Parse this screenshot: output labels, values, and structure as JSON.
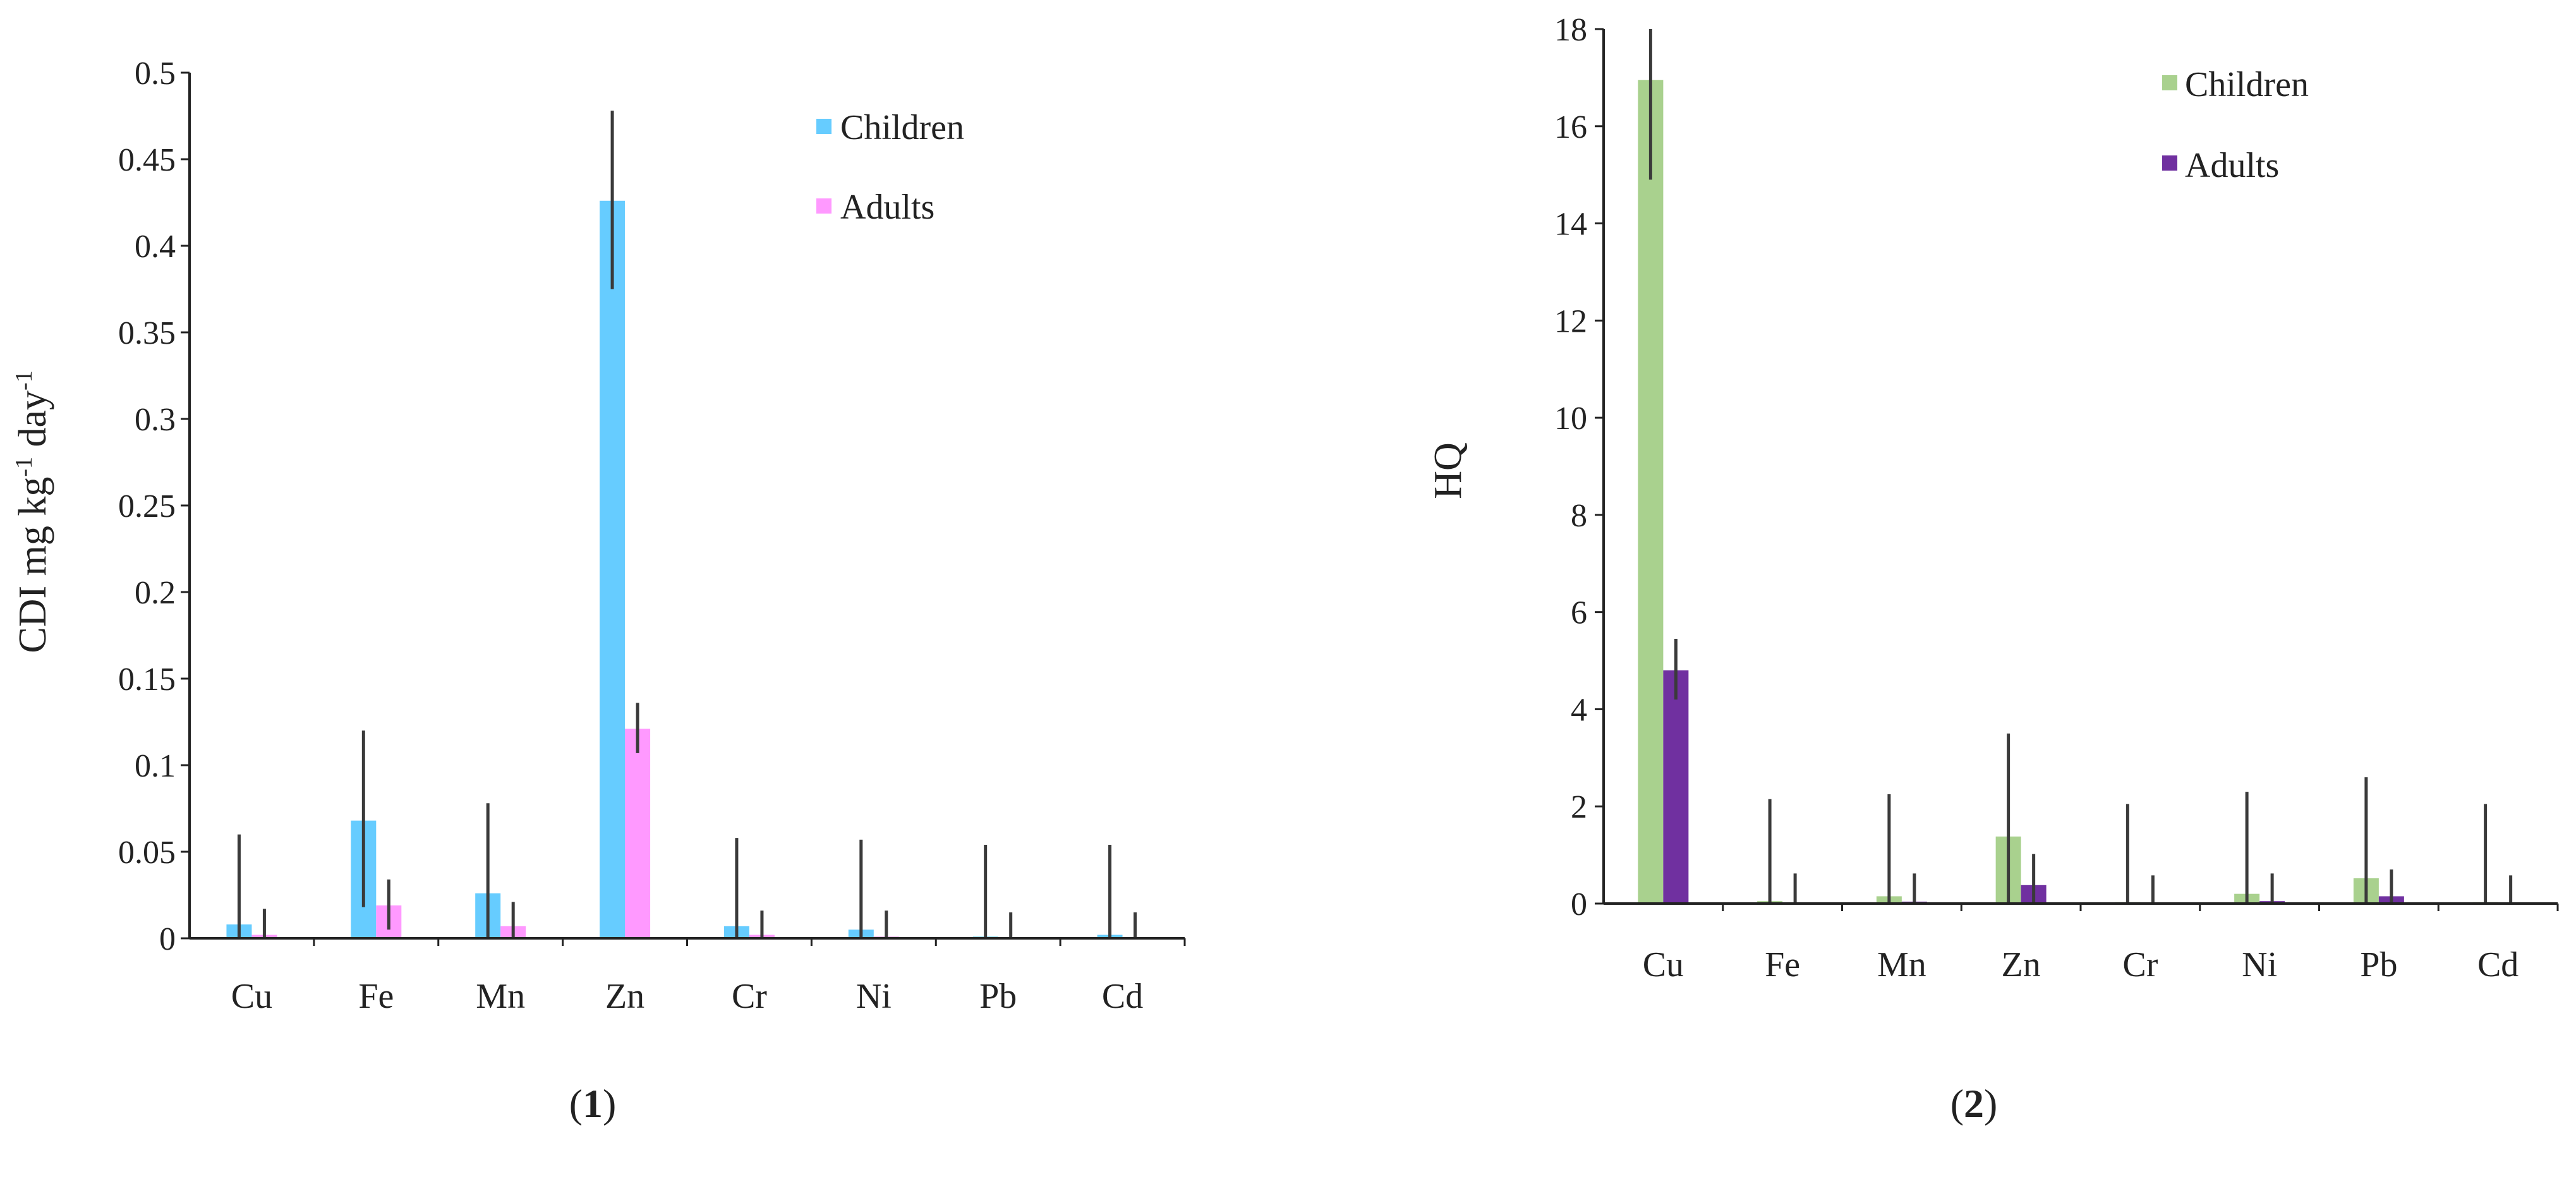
{
  "chart_data": [
    {
      "type": "bar",
      "title": "",
      "panel_label": {
        "open": "(",
        "num": "1",
        "close": ")"
      },
      "xlabel": "",
      "ylabel_parts": [
        "CDI mg kg",
        "-1",
        " day",
        "-1"
      ],
      "ylim": [
        0,
        0.5
      ],
      "yticks": [
        0,
        0.05,
        0.1,
        0.15,
        0.2,
        0.25,
        0.3,
        0.35,
        0.4,
        0.45,
        0.5
      ],
      "ytick_labels": [
        "0",
        "0.05",
        "0.1",
        "0.15",
        "0.2",
        "0.25",
        "0.3",
        "0.35",
        "0.4",
        "0.45",
        "0.5"
      ],
      "categories": [
        "Cu",
        "Fe",
        "Mn",
        "Zn",
        "Cr",
        "Ni",
        "Pb",
        "Cd"
      ],
      "legend_position": "top-right",
      "series": [
        {
          "name": "Children",
          "color": "#66CCFF",
          "values": [
            0.008,
            0.068,
            0.026,
            0.426,
            0.007,
            0.005,
            0.001,
            0.002
          ],
          "err_low": [
            0.0,
            0.018,
            0.0,
            0.375,
            0.0,
            0.0,
            0.0,
            0.0
          ],
          "err_high": [
            0.06,
            0.12,
            0.078,
            0.478,
            0.058,
            0.057,
            0.054,
            0.054
          ]
        },
        {
          "name": "Adults",
          "color": "#FF99FF",
          "values": [
            0.002,
            0.019,
            0.007,
            0.121,
            0.002,
            0.001,
            0.0005,
            0.0005
          ],
          "err_low": [
            0.0,
            0.005,
            0.0,
            0.107,
            0.0,
            0.0,
            0.0,
            0.0
          ],
          "err_high": [
            0.017,
            0.034,
            0.021,
            0.136,
            0.016,
            0.016,
            0.015,
            0.015
          ]
        }
      ]
    },
    {
      "type": "bar",
      "title": "",
      "panel_label": {
        "open": "(",
        "num": "2",
        "close": ")"
      },
      "xlabel": "",
      "ylabel_parts": [
        "HQ"
      ],
      "ylim": [
        0,
        18
      ],
      "yticks": [
        0,
        2,
        4,
        6,
        8,
        10,
        12,
        14,
        16,
        18
      ],
      "ytick_labels": [
        "0",
        "2",
        "4",
        "6",
        "8",
        "10",
        "12",
        "14",
        "16",
        "18"
      ],
      "categories": [
        "Cu",
        "Fe",
        "Mn",
        "Zn",
        "Cr",
        "Ni",
        "Pb",
        "Cd"
      ],
      "legend_position": "top-right",
      "series": [
        {
          "name": "Children",
          "color": "#A9D18E",
          "values": [
            16.95,
            0.05,
            0.15,
            1.38,
            0.03,
            0.2,
            0.52,
            0.03
          ],
          "err_low": [
            14.9,
            0.0,
            0.0,
            0.0,
            0.0,
            0.0,
            0.0,
            0.0
          ],
          "err_high": [
            18.0,
            2.15,
            2.25,
            3.5,
            2.05,
            2.3,
            2.6,
            2.05
          ]
        },
        {
          "name": "Adults",
          "color": "#7030A0",
          "values": [
            4.8,
            0.01,
            0.04,
            0.38,
            0.01,
            0.05,
            0.15,
            0.01
          ],
          "err_low": [
            4.2,
            0.0,
            0.0,
            0.0,
            0.0,
            0.0,
            0.0,
            0.0
          ],
          "err_high": [
            5.45,
            0.62,
            0.62,
            1.02,
            0.58,
            0.62,
            0.7,
            0.58
          ]
        }
      ]
    }
  ]
}
